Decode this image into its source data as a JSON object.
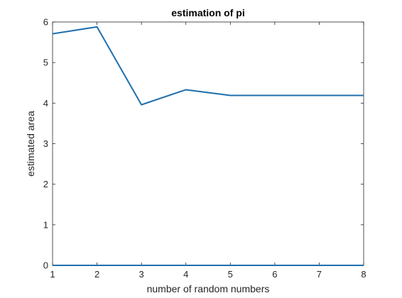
{
  "chart_data": {
    "type": "line",
    "title": "estimation of pi",
    "xlabel": "number of random numbers",
    "ylabel": "estimated area",
    "xlim": [
      1,
      8
    ],
    "ylim": [
      0,
      6
    ],
    "x_ticks": [
      "1",
      "2",
      "3",
      "4",
      "5",
      "6",
      "7",
      "8"
    ],
    "y_ticks": [
      "0",
      "1",
      "2",
      "3",
      "4",
      "5",
      "6"
    ],
    "grid": false,
    "line_color": "#1f6fad",
    "series": [
      {
        "x": [
          1,
          2,
          3,
          4,
          5,
          6,
          7,
          8
        ],
        "values": [
          5.71,
          5.88,
          3.96,
          4.33,
          4.19,
          4.19,
          4.19,
          4.19
        ]
      },
      {
        "x": [
          1,
          8
        ],
        "values": [
          0,
          0
        ]
      }
    ]
  }
}
